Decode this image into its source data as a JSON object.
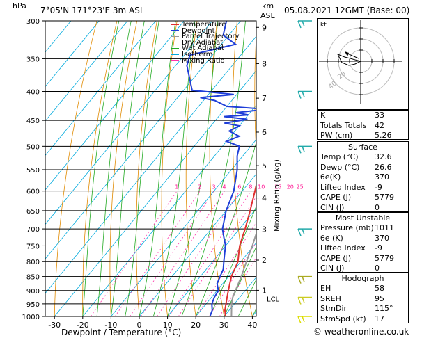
{
  "header": {
    "hpa_label": "hPa",
    "location": "7°05'N 171°23'E 3m ASL",
    "km_label": "km",
    "asl_label": "ASL",
    "datetime": "05.08.2021 12GMT (Base: 00)"
  },
  "legend": {
    "items": [
      {
        "label": "Temperature",
        "color": "#e03030"
      },
      {
        "label": "Dewpoint",
        "color": "#1e3ed8"
      },
      {
        "label": "Parcel Trajectory",
        "color": "#999999"
      },
      {
        "label": "Dry Adiabat",
        "color": "#e08a00"
      },
      {
        "label": "Wet Adiabat",
        "color": "#22aa22"
      },
      {
        "label": "Isotherm",
        "color": "#00aadd"
      },
      {
        "label": "Mixing Ratio",
        "color": "#ff33aa"
      }
    ]
  },
  "axes": {
    "xlabel": "Dewpoint / Temperature (°C)",
    "ylabel_right": "Mixing Ratio (g/kg)"
  },
  "chart_data": {
    "type": "line",
    "pressure_levels": [
      300,
      350,
      400,
      450,
      500,
      550,
      600,
      650,
      700,
      750,
      800,
      850,
      900,
      950,
      1000
    ],
    "temp_ticks": [
      -30,
      -20,
      -10,
      0,
      10,
      20,
      30,
      40
    ],
    "km_ticks": [
      {
        "label": "9",
        "p": 308
      },
      {
        "label": "8",
        "p": 357
      },
      {
        "label": "7",
        "p": 411
      },
      {
        "label": "6",
        "p": 472
      },
      {
        "label": "5",
        "p": 541
      },
      {
        "label": "4",
        "p": 617
      },
      {
        "label": "3",
        "p": 701
      },
      {
        "label": "2",
        "p": 795
      },
      {
        "label": "1",
        "p": 899
      }
    ],
    "lcl": {
      "label": "LCL",
      "p": 920
    },
    "mixing_ratio_labels": [
      "1",
      "2",
      "3",
      "4",
      "6",
      "8",
      "10",
      "15",
      "20",
      "25"
    ],
    "mixing_ratio_values": [
      1,
      2,
      3,
      4,
      6,
      8,
      10,
      15,
      20,
      25
    ],
    "series": [
      {
        "name": "Temperature",
        "color": "#e03030",
        "points": [
          [
            1000,
            30.5
          ],
          [
            975,
            28.5
          ],
          [
            950,
            27
          ],
          [
            925,
            25.5
          ],
          [
            900,
            24
          ],
          [
            875,
            22.5
          ],
          [
            850,
            21
          ],
          [
            825,
            20
          ],
          [
            800,
            19
          ],
          [
            775,
            17
          ],
          [
            750,
            15
          ],
          [
            725,
            13.5
          ],
          [
            700,
            12
          ],
          [
            650,
            8.5
          ],
          [
            600,
            4.5
          ],
          [
            550,
            0
          ],
          [
            500,
            -5
          ],
          [
            450,
            -10
          ],
          [
            400,
            -16
          ],
          [
            350,
            -24
          ],
          [
            300,
            -33
          ]
        ]
      },
      {
        "name": "Dewpoint",
        "color": "#1e3ed8",
        "points": [
          [
            1000,
            25
          ],
          [
            975,
            24
          ],
          [
            950,
            22
          ],
          [
            925,
            21
          ],
          [
            900,
            20.5
          ],
          [
            875,
            18
          ],
          [
            850,
            17
          ],
          [
            825,
            16
          ],
          [
            800,
            14
          ],
          [
            775,
            12
          ],
          [
            750,
            10
          ],
          [
            725,
            7
          ],
          [
            700,
            4
          ],
          [
            650,
            0
          ],
          [
            600,
            -3
          ],
          [
            550,
            -8
          ],
          [
            520,
            -12
          ],
          [
            500,
            -14
          ],
          [
            490,
            -20
          ],
          [
            480,
            -17
          ],
          [
            470,
            -22
          ],
          [
            460,
            -20
          ],
          [
            455,
            -26
          ],
          [
            448,
            -19
          ],
          [
            443,
            -28
          ],
          [
            440,
            -20
          ],
          [
            436,
            -25
          ],
          [
            430,
            -15
          ],
          [
            425,
            -30
          ],
          [
            415,
            -36
          ],
          [
            410,
            -42
          ],
          [
            405,
            -31
          ],
          [
            398,
            -47
          ],
          [
            360,
            -56
          ],
          [
            345,
            -58
          ],
          [
            330,
            -45
          ],
          [
            318,
            -52
          ],
          [
            300,
            -55
          ]
        ]
      },
      {
        "name": "Parcel Trajectory",
        "color": "#999999",
        "points": [
          [
            1000,
            32.6
          ],
          [
            950,
            29
          ],
          [
            925,
            27.5
          ],
          [
            900,
            26.5
          ],
          [
            850,
            24.5
          ],
          [
            800,
            22
          ],
          [
            750,
            19.5
          ],
          [
            700,
            16.5
          ],
          [
            650,
            13.5
          ],
          [
            600,
            10
          ],
          [
            550,
            6
          ],
          [
            500,
            1.5
          ],
          [
            450,
            -3
          ],
          [
            400,
            -8.5
          ],
          [
            350,
            -15
          ],
          [
            300,
            -22.5
          ]
        ]
      }
    ],
    "xlim": [
      -40,
      40
    ],
    "ylim": [
      1000,
      300
    ]
  },
  "wind_barbs": [
    {
      "p": 300,
      "color": "#22aaaa"
    },
    {
      "p": 400,
      "color": "#22aaaa"
    },
    {
      "p": 500,
      "color": "#22aaaa"
    },
    {
      "p": 700,
      "color": "#22aaaa"
    },
    {
      "p": 850,
      "color": "#aaaa22"
    },
    {
      "p": 925,
      "color": "#cccc22"
    },
    {
      "p": 1000,
      "color": "#dddd00"
    }
  ],
  "hodograph": {
    "label": "kt",
    "ring_labels": [
      "20",
      "40"
    ]
  },
  "indices": {
    "rows": [
      {
        "label": "K",
        "value": "33"
      },
      {
        "label": "Totals Totals",
        "value": "42"
      },
      {
        "label": "PW (cm)",
        "value": "5.26"
      }
    ]
  },
  "surface": {
    "title": "Surface",
    "rows": [
      {
        "label": "Temp (°C)",
        "value": "32.6"
      },
      {
        "label": "Dewp (°C)",
        "value": "26.6"
      },
      {
        "label": "θe(K)",
        "value": "370"
      },
      {
        "label": "Lifted Index",
        "value": "-9"
      },
      {
        "label": "CAPE (J)",
        "value": "5779"
      },
      {
        "label": "CIN (J)",
        "value": "0"
      }
    ]
  },
  "most_unstable": {
    "title": "Most Unstable",
    "rows": [
      {
        "label": "Pressure (mb)",
        "value": "1011"
      },
      {
        "label": "θe (K)",
        "value": "370"
      },
      {
        "label": "Lifted Index",
        "value": "-9"
      },
      {
        "label": "CAPE (J)",
        "value": "5779"
      },
      {
        "label": "CIN (J)",
        "value": "0"
      }
    ]
  },
  "hodo_table": {
    "title": "Hodograph",
    "rows": [
      {
        "label": "EH",
        "value": "58"
      },
      {
        "label": "SREH",
        "value": "95"
      },
      {
        "label": "StmDir",
        "value": "115°"
      },
      {
        "label": "StmSpd (kt)",
        "value": "17"
      }
    ]
  },
  "footer": {
    "copyright": "© weatheronline.co.uk"
  }
}
